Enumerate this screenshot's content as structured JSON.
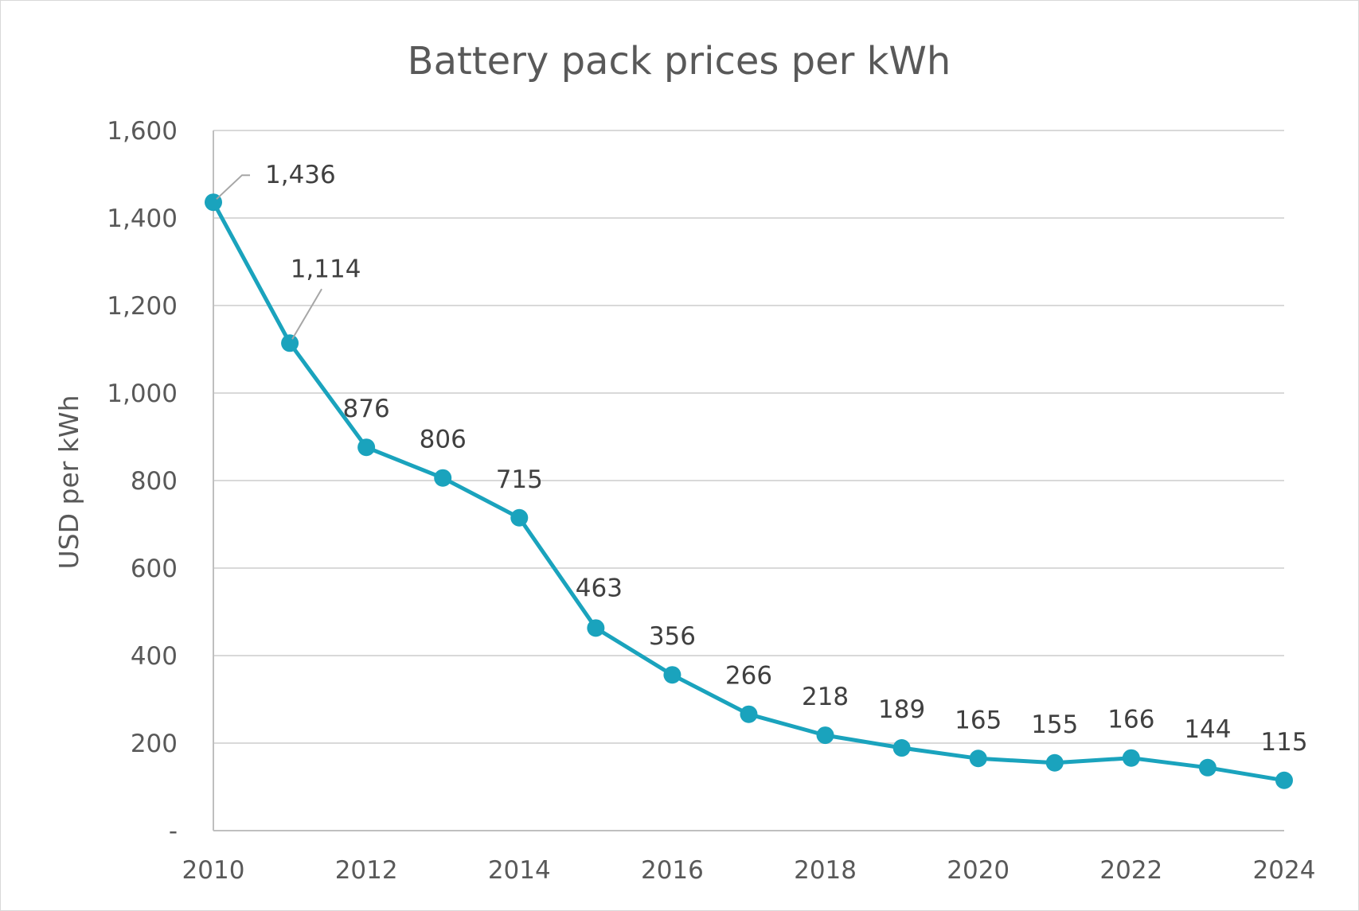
{
  "chart_data": {
    "type": "line",
    "title": "Battery pack prices per kWh",
    "xlabel": "",
    "ylabel": "USD per kWh",
    "x": [
      2010,
      2011,
      2012,
      2013,
      2014,
      2015,
      2016,
      2017,
      2018,
      2019,
      2020,
      2021,
      2022,
      2023,
      2024
    ],
    "series": [
      {
        "values": [
          1436,
          1114,
          876,
          806,
          715,
          463,
          356,
          266,
          218,
          189,
          165,
          155,
          166,
          144,
          115
        ],
        "data_labels": [
          "1,436",
          "1,114",
          "876",
          "806",
          "715",
          "463",
          "356",
          "266",
          "218",
          "189",
          "165",
          "155",
          "166",
          "144",
          "115"
        ],
        "color": "#1aa3bd"
      }
    ],
    "xlim": [
      2010,
      2024
    ],
    "ylim": [
      0,
      1600
    ],
    "x_ticks": [
      2010,
      2012,
      2014,
      2016,
      2018,
      2020,
      2022,
      2024
    ],
    "x_tick_labels": [
      "2010",
      "2012",
      "2014",
      "2016",
      "2018",
      "2020",
      "2022",
      "2024"
    ],
    "y_ticks": [
      0,
      200,
      400,
      600,
      800,
      1000,
      1200,
      1400,
      1600
    ],
    "y_tick_labels": [
      "-",
      "200",
      "400",
      "600",
      "800",
      "1,000",
      "1,200",
      "1,400",
      "1,600"
    ],
    "grid": "horizontal",
    "legend": "none",
    "colors": {
      "line": "#1aa3bd",
      "grid": "#d9d9d9",
      "axis": "#bfbfbf",
      "text": "#595959",
      "data_label": "#404040",
      "leader_line": "#a6a6a6"
    }
  }
}
